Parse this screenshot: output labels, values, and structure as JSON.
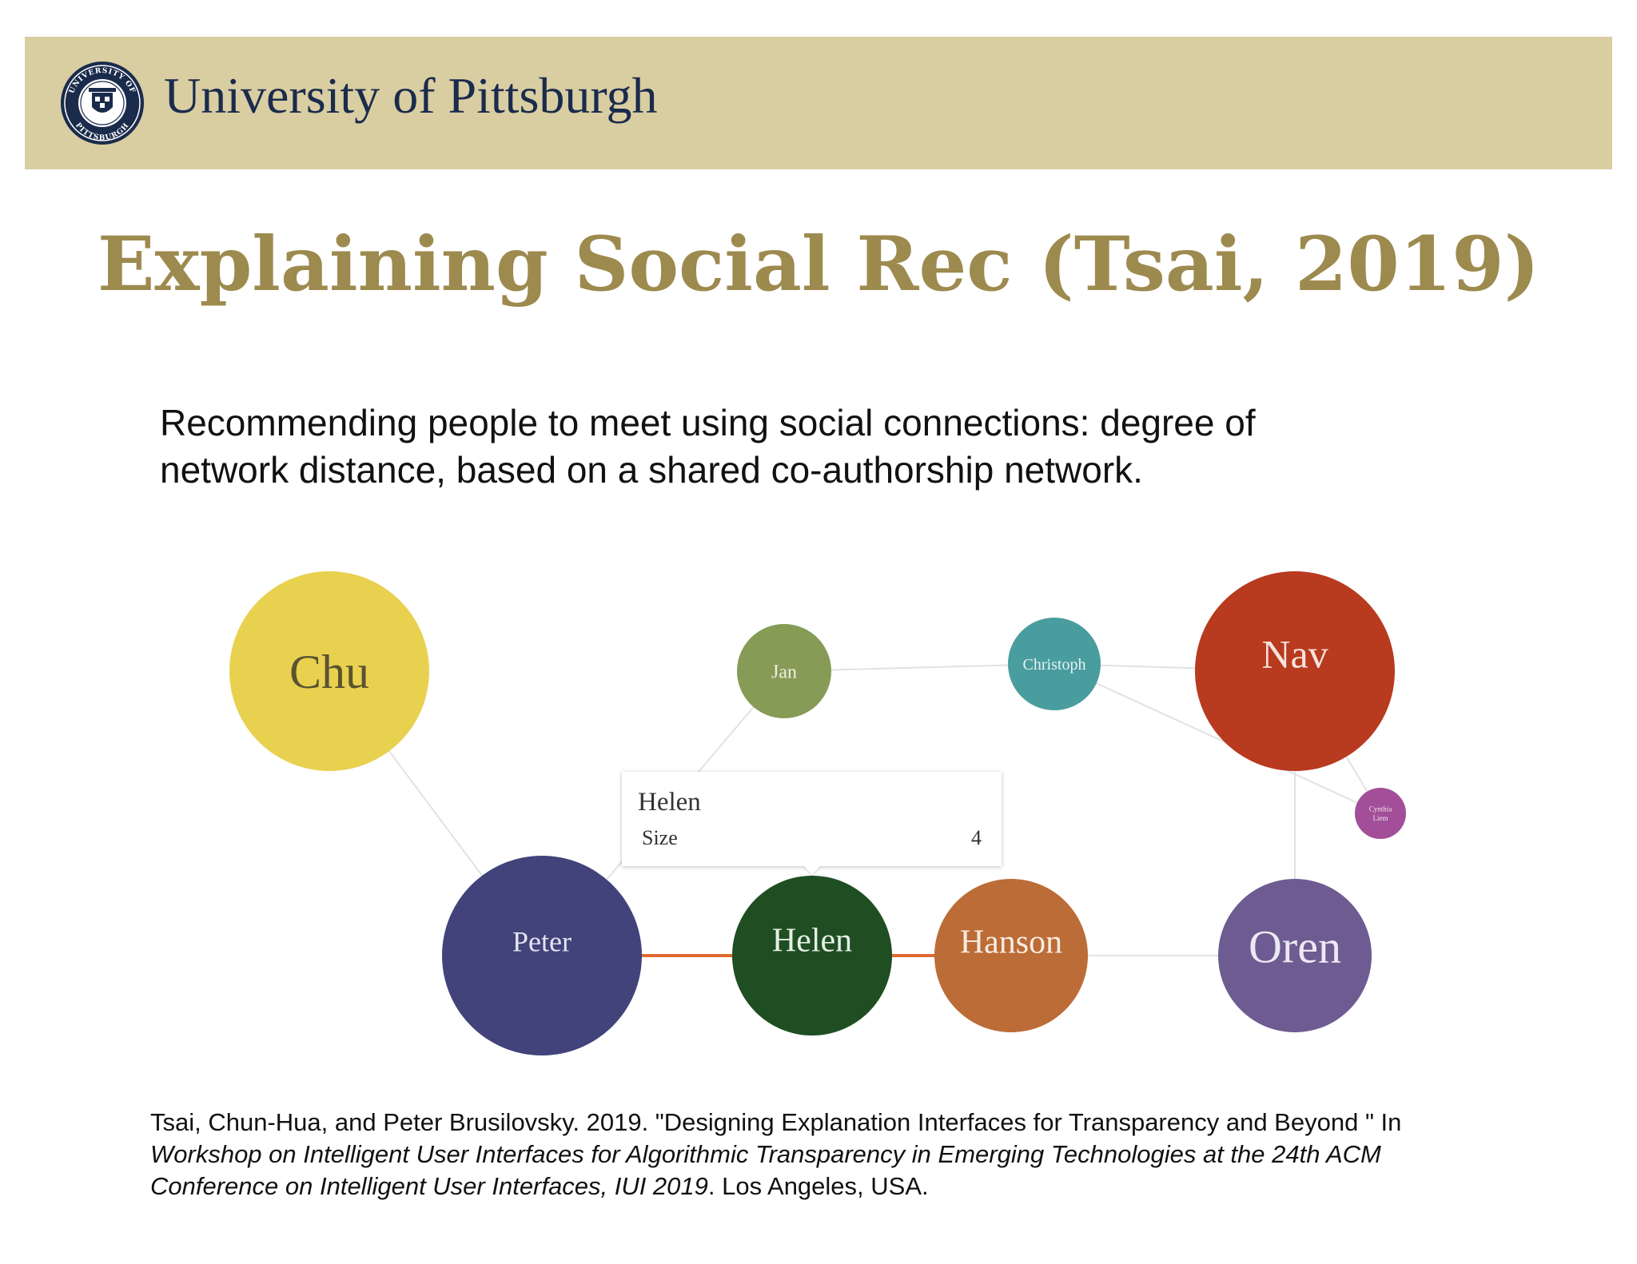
{
  "header": {
    "university_name": "University of Pittsburgh",
    "seal_top_text": "UNIVERSITY OF",
    "seal_bottom_text": "PITTSBURGH",
    "background_color": "#d9cda2",
    "text_color": "#1a2b4c"
  },
  "slide": {
    "title": "Explaining Social Rec (Tsai, 2019)",
    "title_color": "#9d8a4e",
    "intro": "Recommending people to meet using social connections: degree of\nnetwork distance, based on a shared co-authorship network."
  },
  "network": {
    "nodes": [
      {
        "id": "chu",
        "label": "Chu",
        "color": "#e9d150",
        "text_color": "#5a5330"
      },
      {
        "id": "jan",
        "label": "Jan",
        "color": "#869b56",
        "text_color": "#eef0e4"
      },
      {
        "id": "christoph",
        "label": "Christoph",
        "color": "#4a9d9e",
        "text_color": "#e4f2f2"
      },
      {
        "id": "nav",
        "label": "Nav",
        "color": "#b83a1f",
        "text_color": "#f6e3dc"
      },
      {
        "id": "cynthia",
        "label": "Cynthia Liem",
        "color": "#a24e98",
        "text_color": "#f4e4f1"
      },
      {
        "id": "peter",
        "label": "Peter",
        "color": "#41437a",
        "text_color": "#e3e4f0"
      },
      {
        "id": "helen",
        "label": "Helen",
        "color": "#1f4e22",
        "text_color": "#e6efe6"
      },
      {
        "id": "hanson",
        "label": "Hanson",
        "color": "#bc6c36",
        "text_color": "#f8ebe0"
      },
      {
        "id": "oren",
        "label": "Oren",
        "color": "#6d5b91",
        "text_color": "#ece8f3"
      }
    ],
    "edges": [
      {
        "from": "chu",
        "to": "peter",
        "highlighted": false
      },
      {
        "from": "peter",
        "to": "jan",
        "highlighted": false
      },
      {
        "from": "jan",
        "to": "christoph",
        "highlighted": false
      },
      {
        "from": "christoph",
        "to": "nav",
        "highlighted": false
      },
      {
        "from": "christoph",
        "to": "cynthia",
        "highlighted": false
      },
      {
        "from": "nav",
        "to": "cynthia",
        "highlighted": false
      },
      {
        "from": "nav",
        "to": "oren",
        "highlighted": false
      },
      {
        "from": "hanson",
        "to": "oren",
        "highlighted": false
      },
      {
        "from": "peter",
        "to": "helen",
        "highlighted": true
      },
      {
        "from": "helen",
        "to": "hanson",
        "highlighted": true
      }
    ],
    "highlight_color": "#e06a2f",
    "edge_color": "#e2e2e6",
    "tooltip": {
      "title": "Helen",
      "key": "Size",
      "value": "4"
    }
  },
  "citation": {
    "plain_1": "Tsai, Chun-Hua, and Peter Brusilovsky. 2019. \"Designing Explanation Interfaces for Transparency and Beyond \" In ",
    "italic": "Workshop on Intelligent User Interfaces for Algorithmic Transparency in Emerging Technologies at the 24th ACM Conference on Intelligent User Interfaces, IUI 2019",
    "plain_2": ". Los Angeles, USA."
  }
}
